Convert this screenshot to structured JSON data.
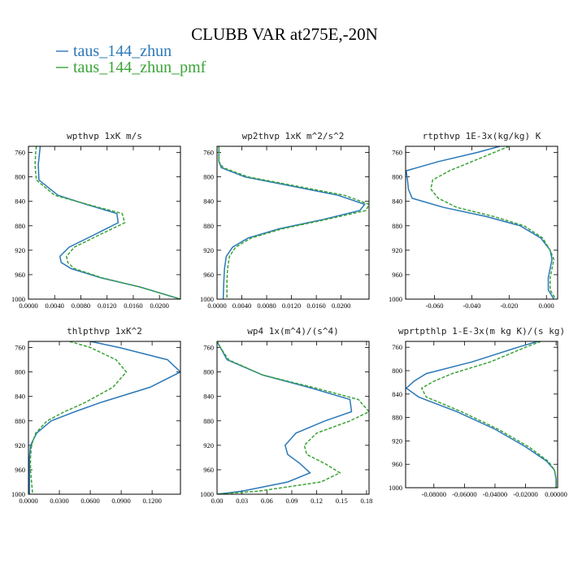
{
  "figure": {
    "title": "CLUBB VAR at275E,-20N",
    "legend": [
      {
        "label": "taus_144_zhun",
        "color": "#2a78b8",
        "dash": "solid"
      },
      {
        "label": "taus_144_zhun_pmf",
        "color": "#3aa336",
        "dash": "dashed"
      }
    ]
  },
  "chart_data": [
    {
      "type": "line",
      "title": "wpthvp  1xK m/s",
      "ylabel": "",
      "xlabel": "",
      "ylim": [
        1000,
        750
      ],
      "xlim": [
        0,
        0.0232
      ],
      "yticks": [
        760,
        800,
        840,
        880,
        920,
        960,
        1000
      ],
      "xticks": [
        0,
        0.004,
        0.008,
        0.012,
        0.016,
        0.02
      ],
      "xtick_labels": [
        "0.0000",
        "0.0040",
        "0.0080",
        "0.0120",
        "0.0160",
        "0.0200"
      ],
      "y": [
        750,
        760,
        780,
        805,
        830,
        845,
        860,
        875,
        895,
        915,
        930,
        940,
        950,
        965,
        980,
        1000
      ],
      "series": [
        {
          "name": "taus_144_zhun",
          "x": [
            0.0018,
            0.0017,
            0.0015,
            0.0016,
            0.0045,
            0.0088,
            0.0135,
            0.0137,
            0.01,
            0.0062,
            0.0048,
            0.005,
            0.0065,
            0.011,
            0.017,
            0.0232
          ]
        },
        {
          "name": "taus_144_zhun_pmf",
          "x": [
            0.0012,
            0.0011,
            0.001,
            0.0012,
            0.004,
            0.009,
            0.0143,
            0.0147,
            0.0108,
            0.007,
            0.0058,
            0.006,
            0.007,
            0.0112,
            0.017,
            0.0232
          ]
        }
      ]
    },
    {
      "type": "line",
      "title": "wp2thvp  1xK m^2/s^2",
      "ylabel": "",
      "xlabel": "",
      "ylim": [
        1000,
        750
      ],
      "xlim": [
        0,
        0.0245
      ],
      "yticks": [
        760,
        800,
        840,
        880,
        920,
        960,
        1000
      ],
      "xticks": [
        0,
        0.004,
        0.008,
        0.012,
        0.016,
        0.02
      ],
      "xtick_labels": [
        "0.0000",
        "0.0040",
        "0.0080",
        "0.0120",
        "0.0160",
        "0.0200"
      ],
      "y": [
        750,
        775,
        785,
        800,
        815,
        830,
        845,
        855,
        870,
        885,
        900,
        915,
        930,
        950,
        970,
        1000
      ],
      "series": [
        {
          "name": "taus_144_zhun",
          "x": [
            0.0003,
            0.0003,
            0.0007,
            0.0045,
            0.012,
            0.0195,
            0.0238,
            0.023,
            0.017,
            0.01,
            0.005,
            0.0025,
            0.0015,
            0.0012,
            0.0011,
            0.001
          ]
        },
        {
          "name": "taus_144_zhun_pmf",
          "x": [
            0.0003,
            0.0003,
            0.001,
            0.005,
            0.0128,
            0.0205,
            0.0245,
            0.024,
            0.0175,
            0.0105,
            0.0055,
            0.003,
            0.002,
            0.0017,
            0.0016,
            0.0016
          ]
        }
      ]
    },
    {
      "type": "line",
      "title": "rtpthvp  1E-3x(kg/kg) K",
      "ylabel": "",
      "xlabel": "",
      "ylim": [
        1000,
        750
      ],
      "xlim": [
        -0.0755,
        0.006
      ],
      "yticks": [
        760,
        800,
        840,
        880,
        920,
        960,
        1000
      ],
      "xticks": [
        -0.06,
        -0.04,
        -0.02,
        0
      ],
      "xtick_labels": [
        "-0.060",
        "-0.040",
        "-0.020",
        "0.000"
      ],
      "y": [
        750,
        760,
        775,
        790,
        805,
        820,
        835,
        850,
        865,
        880,
        900,
        920,
        935,
        950,
        965,
        985,
        1000
      ],
      "series": [
        {
          "name": "taus_144_zhun",
          "x": [
            -0.025,
            -0.037,
            -0.058,
            -0.0752,
            -0.0745,
            -0.074,
            -0.072,
            -0.055,
            -0.032,
            -0.014,
            -0.003,
            0.002,
            0.003,
            0.002,
            0.001,
            0.001,
            0.004
          ]
        },
        {
          "name": "taus_144_zhun_pmf",
          "x": [
            -0.02,
            -0.028,
            -0.04,
            -0.052,
            -0.061,
            -0.062,
            -0.058,
            -0.048,
            -0.028,
            -0.012,
            -0.002,
            0.002,
            0.004,
            0.003,
            0.002,
            0.002,
            0.005
          ]
        }
      ]
    },
    {
      "type": "line",
      "title": "thlpthvp  1xK^2",
      "ylabel": "",
      "xlabel": "",
      "ylim": [
        1000,
        750
      ],
      "xlim": [
        0,
        0.1475
      ],
      "yticks": [
        760,
        800,
        840,
        880,
        920,
        960,
        1000
      ],
      "xticks": [
        0,
        0.03,
        0.06,
        0.09,
        0.12
      ],
      "xtick_labels": [
        "0.0000",
        "0.0300",
        "0.0600",
        "0.0900",
        "0.1200"
      ],
      "y": [
        750,
        760,
        780,
        800,
        825,
        850,
        865,
        880,
        900,
        920,
        940,
        960,
        980,
        1000
      ],
      "series": [
        {
          "name": "taus_144_zhun",
          "x": [
            0.06,
            0.088,
            0.135,
            0.1475,
            0.118,
            0.07,
            0.045,
            0.022,
            0.008,
            0.002,
            0.001,
            0.001,
            0.001,
            0.001
          ]
        },
        {
          "name": "taus_144_zhun_pmf",
          "x": [
            0.04,
            0.06,
            0.085,
            0.095,
            0.082,
            0.055,
            0.035,
            0.018,
            0.007,
            0.003,
            0.002,
            0.002,
            0.003,
            0.004
          ]
        }
      ]
    },
    {
      "type": "line",
      "title": "wp4  1x(m^4)/(s^4)",
      "ylabel": "",
      "xlabel": "",
      "ylim": [
        1000,
        750
      ],
      "xlim": [
        0,
        0.183
      ],
      "yticks": [
        760,
        800,
        840,
        880,
        920,
        960,
        1000
      ],
      "xticks": [
        0,
        0.03,
        0.06,
        0.09,
        0.12,
        0.15,
        0.18
      ],
      "xtick_labels": [
        "0.00",
        "0.03",
        "0.06",
        "0.09",
        "0.12",
        "0.15",
        "0.18"
      ],
      "y": [
        750,
        760,
        780,
        805,
        825,
        845,
        865,
        880,
        900,
        920,
        935,
        950,
        965,
        980,
        995,
        1000
      ],
      "series": [
        {
          "name": "taus_144_zhun",
          "x": [
            0.0,
            0.004,
            0.012,
            0.055,
            0.11,
            0.16,
            0.162,
            0.13,
            0.095,
            0.082,
            0.085,
            0.1,
            0.112,
            0.085,
            0.03,
            0.0
          ]
        },
        {
          "name": "taus_144_zhun_pmf",
          "x": [
            0.0,
            0.004,
            0.014,
            0.055,
            0.115,
            0.17,
            0.183,
            0.16,
            0.12,
            0.105,
            0.108,
            0.13,
            0.148,
            0.125,
            0.05,
            0.0
          ]
        }
      ]
    },
    {
      "type": "line",
      "title": "wprtpthlp  1-E-3x(m kg K)/(s kg)",
      "ylabel": "",
      "xlabel": "",
      "ylim": [
        1000,
        750
      ],
      "xlim": [
        -0.0985,
        0.001
      ],
      "yticks": [
        760,
        800,
        840,
        880,
        920,
        960,
        1000
      ],
      "xticks": [
        -0.08,
        -0.06,
        -0.04,
        -0.02,
        0
      ],
      "xtick_labels": [
        "-0.08000",
        "-0.06000",
        "-0.04000",
        "-0.02000",
        "0.00000"
      ],
      "y": [
        750,
        760,
        785,
        805,
        818,
        830,
        845,
        870,
        900,
        930,
        955,
        970,
        985,
        1000
      ],
      "series": [
        {
          "name": "taus_144_zhun",
          "x": [
            -0.012,
            -0.025,
            -0.055,
            -0.085,
            -0.093,
            -0.098,
            -0.09,
            -0.065,
            -0.04,
            -0.02,
            -0.006,
            -0.001,
            0.0,
            0.0
          ]
        },
        {
          "name": "taus_144_zhun_pmf",
          "x": [
            -0.01,
            -0.02,
            -0.043,
            -0.068,
            -0.08,
            -0.088,
            -0.085,
            -0.062,
            -0.038,
            -0.018,
            -0.005,
            -0.001,
            0.0,
            0.0
          ]
        }
      ]
    }
  ]
}
